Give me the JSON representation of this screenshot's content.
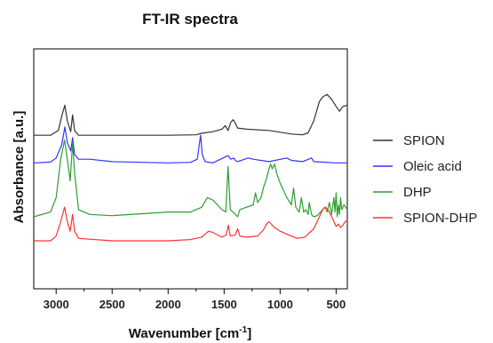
{
  "chart_data": {
    "type": "line",
    "title": "FT-IR spectra",
    "xlabel": "Wavenumber [cm",
    "xlabel_sup": "-1",
    "xlabel_close": "]",
    "ylabel": "Absorbance [a.u.]",
    "x_reversed": true,
    "xlim": [
      3200,
      400
    ],
    "ylim": [
      0,
      1
    ],
    "grid": false,
    "legend_position": "right",
    "x_ticks": [
      3000,
      2500,
      2000,
      1500,
      1000,
      500
    ],
    "x_tick_labels": [
      "3000",
      "2500",
      "2000",
      "1500",
      "1000",
      "500"
    ],
    "series": [
      {
        "name": "SPION",
        "color": "#333333",
        "points": [
          [
            3200,
            0.64
          ],
          [
            3050,
            0.64
          ],
          [
            2980,
            0.66
          ],
          [
            2950,
            0.72
          ],
          [
            2922,
            0.765
          ],
          [
            2900,
            0.7
          ],
          [
            2870,
            0.655
          ],
          [
            2853,
            0.725
          ],
          [
            2835,
            0.66
          ],
          [
            2800,
            0.64
          ],
          [
            2500,
            0.64
          ],
          [
            2000,
            0.64
          ],
          [
            1750,
            0.642
          ],
          [
            1700,
            0.648
          ],
          [
            1600,
            0.655
          ],
          [
            1520,
            0.665
          ],
          [
            1490,
            0.68
          ],
          [
            1465,
            0.66
          ],
          [
            1440,
            0.695
          ],
          [
            1420,
            0.705
          ],
          [
            1400,
            0.69
          ],
          [
            1380,
            0.67
          ],
          [
            1300,
            0.665
          ],
          [
            1100,
            0.66
          ],
          [
            900,
            0.645
          ],
          [
            800,
            0.642
          ],
          [
            750,
            0.65
          ],
          [
            700,
            0.7
          ],
          [
            650,
            0.78
          ],
          [
            620,
            0.8
          ],
          [
            580,
            0.81
          ],
          [
            540,
            0.79
          ],
          [
            500,
            0.76
          ],
          [
            470,
            0.74
          ],
          [
            440,
            0.76
          ],
          [
            400,
            0.765
          ]
        ]
      },
      {
        "name": "Oleic acid",
        "color": "#3333ff",
        "points": [
          [
            3200,
            0.525
          ],
          [
            3050,
            0.528
          ],
          [
            3000,
            0.545
          ],
          [
            2950,
            0.6
          ],
          [
            2922,
            0.675
          ],
          [
            2900,
            0.61
          ],
          [
            2870,
            0.575
          ],
          [
            2853,
            0.63
          ],
          [
            2835,
            0.56
          ],
          [
            2800,
            0.54
          ],
          [
            2700,
            0.54
          ],
          [
            2500,
            0.53
          ],
          [
            2000,
            0.525
          ],
          [
            1800,
            0.527
          ],
          [
            1740,
            0.54
          ],
          [
            1710,
            0.64
          ],
          [
            1695,
            0.56
          ],
          [
            1670,
            0.53
          ],
          [
            1600,
            0.525
          ],
          [
            1465,
            0.555
          ],
          [
            1440,
            0.54
          ],
          [
            1413,
            0.545
          ],
          [
            1400,
            0.535
          ],
          [
            1380,
            0.53
          ],
          [
            1285,
            0.545
          ],
          [
            1240,
            0.54
          ],
          [
            1100,
            0.53
          ],
          [
            940,
            0.545
          ],
          [
            900,
            0.535
          ],
          [
            800,
            0.53
          ],
          [
            720,
            0.545
          ],
          [
            700,
            0.53
          ],
          [
            500,
            0.525
          ],
          [
            400,
            0.525
          ]
        ]
      },
      {
        "name": "DHP",
        "color": "#2e9e2e",
        "points": [
          [
            3200,
            0.3
          ],
          [
            3050,
            0.32
          ],
          [
            3000,
            0.38
          ],
          [
            2960,
            0.54
          ],
          [
            2925,
            0.62
          ],
          [
            2900,
            0.54
          ],
          [
            2875,
            0.45
          ],
          [
            2853,
            0.61
          ],
          [
            2835,
            0.48
          ],
          [
            2800,
            0.33
          ],
          [
            2700,
            0.31
          ],
          [
            2500,
            0.305
          ],
          [
            2000,
            0.32
          ],
          [
            1800,
            0.32
          ],
          [
            1700,
            0.34
          ],
          [
            1650,
            0.38
          ],
          [
            1600,
            0.37
          ],
          [
            1520,
            0.33
          ],
          [
            1485,
            0.32
          ],
          [
            1465,
            0.51
          ],
          [
            1445,
            0.33
          ],
          [
            1410,
            0.315
          ],
          [
            1380,
            0.3
          ],
          [
            1360,
            0.33
          ],
          [
            1300,
            0.34
          ],
          [
            1240,
            0.35
          ],
          [
            1220,
            0.4
          ],
          [
            1200,
            0.36
          ],
          [
            1170,
            0.38
          ],
          [
            1150,
            0.42
          ],
          [
            1120,
            0.46
          ],
          [
            1100,
            0.5
          ],
          [
            1085,
            0.52
          ],
          [
            1070,
            0.5
          ],
          [
            1050,
            0.52
          ],
          [
            1030,
            0.48
          ],
          [
            1000,
            0.44
          ],
          [
            980,
            0.42
          ],
          [
            960,
            0.4
          ],
          [
            940,
            0.38
          ],
          [
            900,
            0.35
          ],
          [
            880,
            0.42
          ],
          [
            860,
            0.34
          ],
          [
            830,
            0.32
          ],
          [
            810,
            0.38
          ],
          [
            790,
            0.32
          ],
          [
            770,
            0.33
          ],
          [
            750,
            0.31
          ],
          [
            740,
            0.36
          ],
          [
            720,
            0.31
          ],
          [
            700,
            0.3
          ],
          [
            670,
            0.305
          ],
          [
            640,
            0.32
          ],
          [
            600,
            0.34
          ],
          [
            580,
            0.32
          ],
          [
            560,
            0.36
          ],
          [
            540,
            0.31
          ],
          [
            520,
            0.38
          ],
          [
            510,
            0.32
          ],
          [
            500,
            0.4
          ],
          [
            490,
            0.3
          ],
          [
            480,
            0.35
          ],
          [
            470,
            0.31
          ],
          [
            460,
            0.38
          ],
          [
            450,
            0.33
          ],
          [
            430,
            0.35
          ],
          [
            400,
            0.33
          ]
        ]
      },
      {
        "name": "SPION-DHP",
        "color": "#ff3333",
        "points": [
          [
            3200,
            0.2
          ],
          [
            3050,
            0.2
          ],
          [
            3000,
            0.22
          ],
          [
            2960,
            0.28
          ],
          [
            2925,
            0.34
          ],
          [
            2900,
            0.28
          ],
          [
            2875,
            0.24
          ],
          [
            2853,
            0.31
          ],
          [
            2835,
            0.24
          ],
          [
            2800,
            0.21
          ],
          [
            2500,
            0.2
          ],
          [
            2000,
            0.2
          ],
          [
            1800,
            0.205
          ],
          [
            1700,
            0.215
          ],
          [
            1640,
            0.24
          ],
          [
            1600,
            0.235
          ],
          [
            1520,
            0.215
          ],
          [
            1480,
            0.225
          ],
          [
            1463,
            0.265
          ],
          [
            1445,
            0.22
          ],
          [
            1400,
            0.225
          ],
          [
            1380,
            0.25
          ],
          [
            1360,
            0.22
          ],
          [
            1300,
            0.215
          ],
          [
            1200,
            0.22
          ],
          [
            1150,
            0.245
          ],
          [
            1120,
            0.27
          ],
          [
            1100,
            0.28
          ],
          [
            1080,
            0.27
          ],
          [
            1050,
            0.255
          ],
          [
            1000,
            0.24
          ],
          [
            950,
            0.23
          ],
          [
            900,
            0.22
          ],
          [
            850,
            0.21
          ],
          [
            780,
            0.215
          ],
          [
            700,
            0.25
          ],
          [
            650,
            0.3
          ],
          [
            620,
            0.33
          ],
          [
            600,
            0.34
          ],
          [
            580,
            0.335
          ],
          [
            550,
            0.31
          ],
          [
            520,
            0.28
          ],
          [
            500,
            0.26
          ],
          [
            480,
            0.27
          ],
          [
            460,
            0.255
          ],
          [
            440,
            0.265
          ],
          [
            420,
            0.28
          ],
          [
            400,
            0.285
          ]
        ]
      }
    ]
  }
}
